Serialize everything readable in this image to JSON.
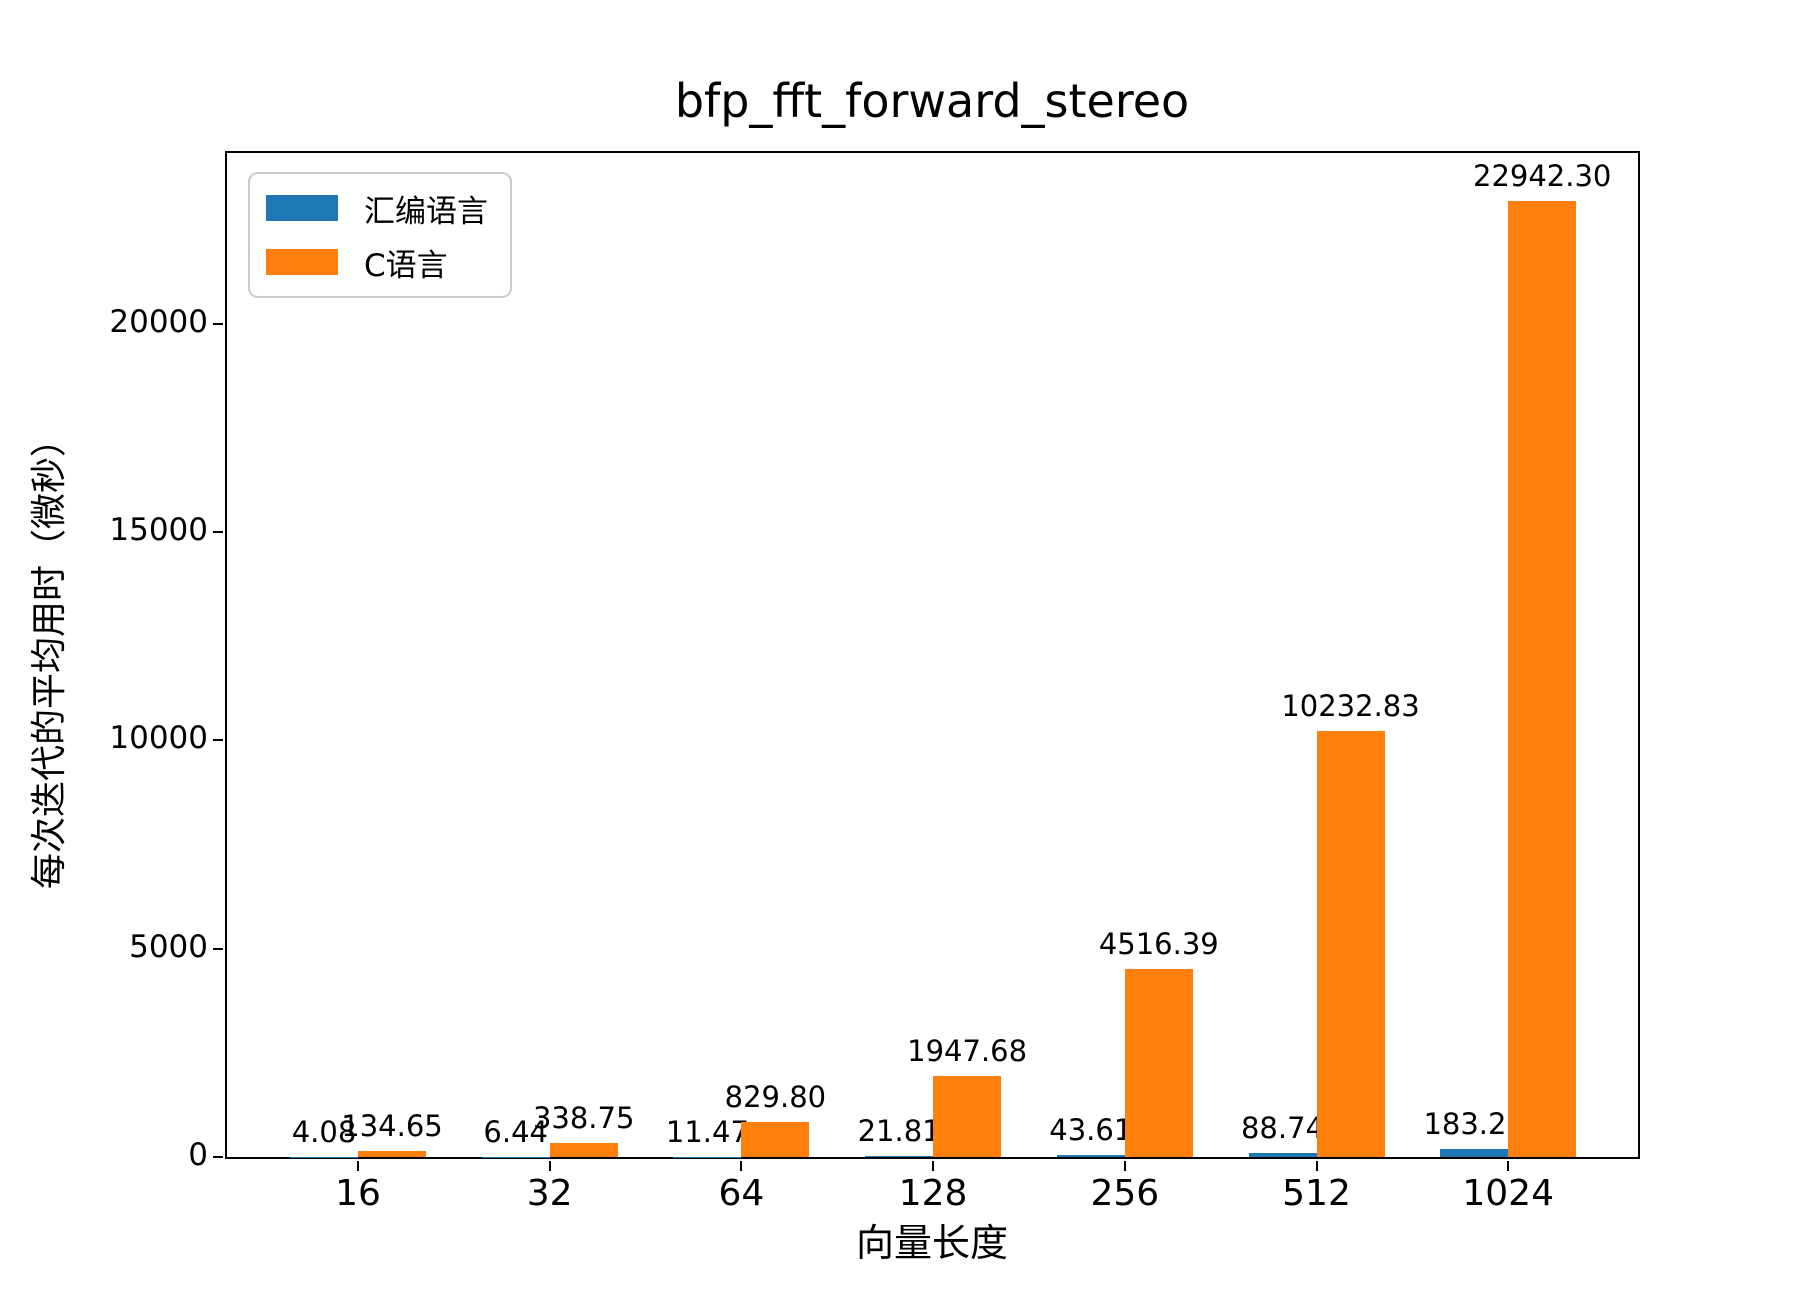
{
  "chart_data": {
    "type": "bar",
    "title": "bfp_fft_forward_stereo",
    "xlabel": "向量长度",
    "ylabel": "每次迭代的平均用时（微秒）",
    "categories": [
      "16",
      "32",
      "64",
      "128",
      "256",
      "512",
      "1024"
    ],
    "series": [
      {
        "name": "汇编语言",
        "color": "#1f77b4",
        "values": [
          4.08,
          6.44,
          11.47,
          21.81,
          43.61,
          88.74,
          183.21
        ]
      },
      {
        "name": "C语言",
        "color": "#ff7f0e",
        "values": [
          134.65,
          338.75,
          829.8,
          1947.68,
          4516.39,
          10232.83,
          22942.3
        ]
      }
    ],
    "bar_labels": {
      "汇编语言": [
        "4.08",
        "6.44",
        "11.47",
        "21.81",
        "43.61",
        "88.74",
        "183.21"
      ],
      "C语言": [
        "134.65",
        "338.75",
        "829.80",
        "1947.68",
        "4516.39",
        "10232.83",
        "22942.30"
      ]
    },
    "ylim": [
      0,
      24100
    ],
    "yticks": [
      0,
      5000,
      10000,
      15000,
      20000
    ],
    "grid": false,
    "legend_position": "upper left",
    "axis_color": "#000000",
    "background_color": "#ffffff"
  }
}
